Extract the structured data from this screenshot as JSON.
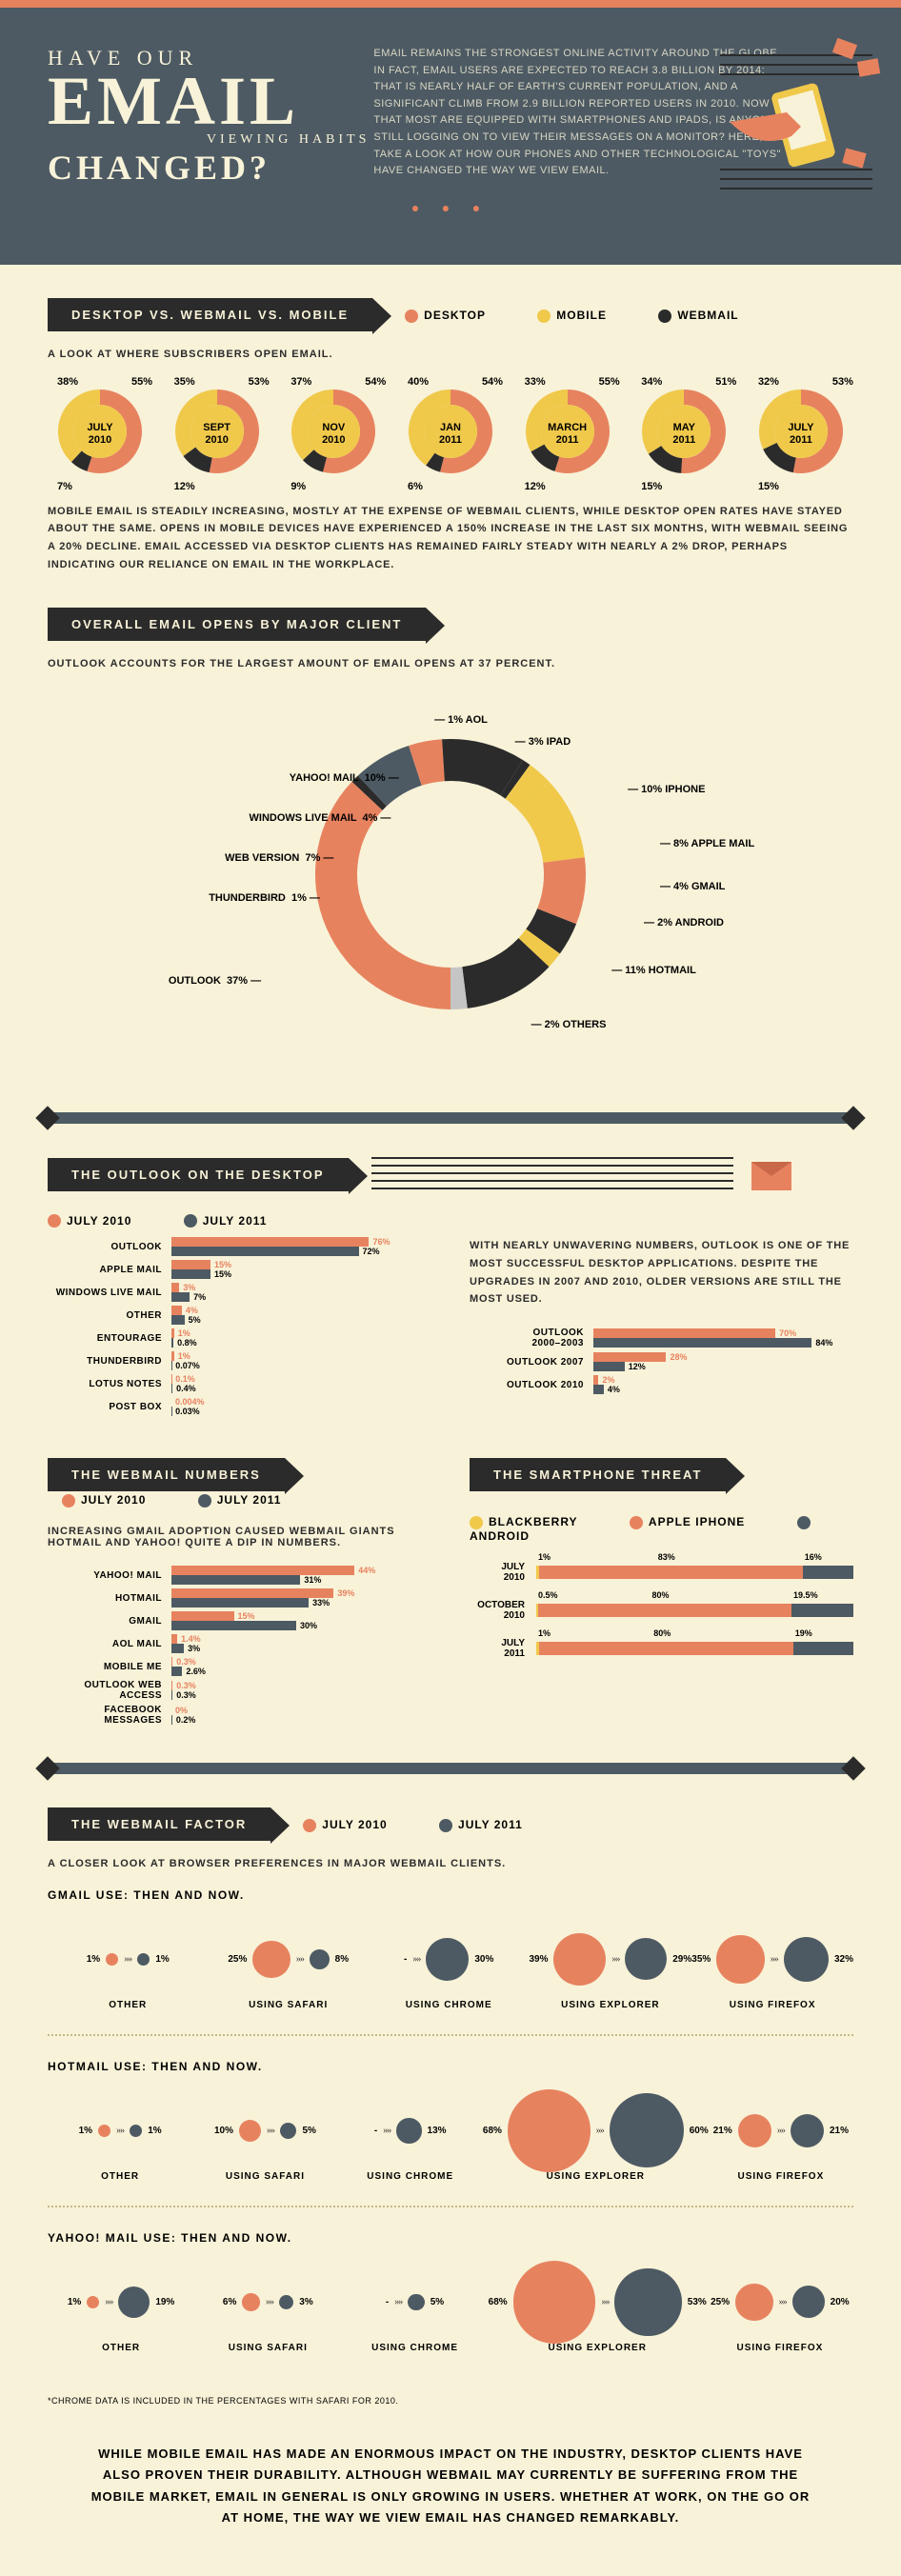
{
  "colors": {
    "desktop": "#e7825f",
    "mobile": "#f0c94b",
    "webmail": "#2b2b2b",
    "android": "#4d5a63",
    "bg": "#f8f2d8",
    "header_bg": "#4d5a63"
  },
  "header": {
    "l1": "HAVE OUR",
    "l2": "EMAIL",
    "l3": "VIEWING HABITS",
    "l4": "CHANGED?",
    "intro": "EMAIL REMAINS THE STRONGEST ONLINE ACTIVITY AROUND THE GLOBE. IN FACT, EMAIL USERS ARE EXPECTED TO REACH 3.8 BILLION BY 2014; THAT IS NEARLY HALF OF EARTH'S CURRENT POPULATION, AND A SIGNIFICANT CLIMB FROM 2.9 BILLION REPORTED USERS IN 2010. NOW THAT MOST ARE EQUIPPED WITH SMARTPHONES AND IPADS, IS ANYONE STILL LOGGING ON TO VIEW THEIR MESSAGES ON A MONITOR? HERE, WE TAKE A LOOK AT HOW OUR PHONES AND OTHER TECHNOLOGICAL \"TOYS\" HAVE CHANGED THE WAY WE VIEW EMAIL."
  },
  "s1": {
    "ribbon": "DESKTOP VS. WEBMAIL VS. MOBILE",
    "legend": {
      "desktop": "DESKTOP",
      "mobile": "MOBILE",
      "webmail": "WEBMAIL"
    },
    "subtext": "A LOOK AT WHERE SUBSCRIBERS OPEN EMAIL.",
    "body": "MOBILE EMAIL IS STEADILY INCREASING, MOSTLY AT THE EXPENSE OF WEBMAIL CLIENTS, WHILE DESKTOP OPEN RATES HAVE STAYED ABOUT THE SAME. OPENS IN MOBILE DEVICES HAVE EXPERIENCED A 150% INCREASE IN THE LAST SIX MONTHS, WITH WEBMAIL SEEING A 20% DECLINE. EMAIL ACCESSED VIA DESKTOP CLIENTS HAS REMAINED FAIRLY STEADY WITH NEARLY A 2% DROP, PERHAPS INDICATING OUR RELIANCE ON EMAIL IN THE WORKPLACE.",
    "donuts": [
      {
        "m1": "JULY",
        "m2": "2010",
        "desktop": 55,
        "mobile": 38,
        "webmail": 7
      },
      {
        "m1": "SEPT",
        "m2": "2010",
        "desktop": 53,
        "mobile": 35,
        "webmail": 12
      },
      {
        "m1": "NOV",
        "m2": "2010",
        "desktop": 54,
        "mobile": 37,
        "webmail": 9
      },
      {
        "m1": "JAN",
        "m2": "2011",
        "desktop": 54,
        "mobile": 40,
        "webmail": 6
      },
      {
        "m1": "MARCH",
        "m2": "2011",
        "desktop": 55,
        "mobile": 33,
        "webmail": 12
      },
      {
        "m1": "MAY",
        "m2": "2011",
        "desktop": 51,
        "mobile": 34,
        "webmail": 15
      },
      {
        "m1": "JULY",
        "m2": "2011",
        "desktop": 53,
        "mobile": 32,
        "webmail": 15
      }
    ]
  },
  "s2": {
    "ribbon": "OVERALL EMAIL OPENS BY MAJOR CLIENT",
    "subtext": "OUTLOOK ACCOUNTS FOR THE LARGEST AMOUNT OF EMAIL OPENS AT 37 PERCENT.",
    "slices": [
      {
        "label": "OUTLOOK",
        "pct": 37,
        "color": "#e7825f"
      },
      {
        "label": "THUNDERBIRD",
        "pct": 1,
        "color": "#2b2b2b"
      },
      {
        "label": "WEB VERSION",
        "pct": 7,
        "color": "#4d5a63"
      },
      {
        "label": "WINDOWS LIVE MAIL",
        "pct": 4,
        "color": "#e7825f"
      },
      {
        "label": "YAHOO! MAIL",
        "pct": 10,
        "color": "#2b2b2b"
      },
      {
        "label": "AOL",
        "pct": 1,
        "color": "#2b2b2b"
      },
      {
        "label": "IPAD",
        "pct": 3,
        "color": "#f0c94b"
      },
      {
        "label": "IPHONE",
        "pct": 10,
        "color": "#f0c94b"
      },
      {
        "label": "APPLE MAIL",
        "pct": 8,
        "color": "#e7825f"
      },
      {
        "label": "GMAIL",
        "pct": 4,
        "color": "#2b2b2b"
      },
      {
        "label": "ANDROID",
        "pct": 2,
        "color": "#f0c94b"
      },
      {
        "label": "HOTMAIL",
        "pct": 11,
        "color": "#2b2b2b"
      },
      {
        "label": "OTHERS",
        "pct": 2,
        "color": "#c5c5c5"
      }
    ]
  },
  "s3": {
    "ribbon": "THE OUTLOOK ON THE DESKTOP",
    "legend": {
      "a": "JULY 2010",
      "b": "JULY 2011"
    },
    "body": "WITH NEARLY UNWAVERING NUMBERS, OUTLOOK IS ONE OF THE MOST SUCCESSFUL DESKTOP APPLICATIONS. DESPITE THE UPGRADES IN 2007 AND 2010, OLDER VERSIONS ARE STILL THE MOST USED.",
    "clients": [
      {
        "label": "OUTLOOK",
        "a": 76,
        "b": 72
      },
      {
        "label": "APPLE MAIL",
        "a": 15,
        "b": 15
      },
      {
        "label": "WINDOWS LIVE MAIL",
        "a": 3,
        "b": 7
      },
      {
        "label": "OTHER",
        "a": 4,
        "b": 5
      },
      {
        "label": "ENTOURAGE",
        "a": 1,
        "b": 0.8
      },
      {
        "label": "THUNDERBIRD",
        "a": 1,
        "b": 0.07
      },
      {
        "label": "LOTUS NOTES",
        "a": 0.1,
        "b": 0.4
      },
      {
        "label": "POST BOX",
        "a": 0.004,
        "b": 0.03
      }
    ],
    "versions": [
      {
        "label": "OUTLOOK 2000–2003",
        "a": 70,
        "b": 84
      },
      {
        "label": "OUTLOOK 2007",
        "a": 28,
        "b": 12
      },
      {
        "label": "OUTLOOK 2010",
        "a": 2,
        "b": 4
      }
    ]
  },
  "s4": {
    "ribbon": "THE WEBMAIL NUMBERS",
    "legend": {
      "a": "JULY 2010",
      "b": "JULY 2011"
    },
    "subtext": "INCREASING GMAIL ADOPTION CAUSED WEBMAIL GIANTS HOTMAIL AND YAHOO! QUITE A DIP IN NUMBERS.",
    "clients": [
      {
        "label": "YAHOO! MAIL",
        "a": 44,
        "b": 31
      },
      {
        "label": "HOTMAIL",
        "a": 39,
        "b": 33
      },
      {
        "label": "GMAIL",
        "a": 15,
        "b": 30
      },
      {
        "label": "AOL MAIL",
        "a": 1.4,
        "b": 3
      },
      {
        "label": "MOBILE ME",
        "a": 0.3,
        "b": 2.6
      },
      {
        "label": "OUTLOOK WEB ACCESS",
        "a": 0.3,
        "b": 0.3
      },
      {
        "label": "FACEBOOK MESSAGES",
        "a": 0,
        "b": 0.2
      }
    ]
  },
  "s5": {
    "ribbon": "THE SMARTPHONE THREAT",
    "legend": {
      "bb": "BLACKBERRY",
      "ip": "APPLE IPHONE",
      "an": "ANDROID"
    },
    "rows": [
      {
        "label": "JULY 2010",
        "bb": 1,
        "ip": 83,
        "an": 16
      },
      {
        "label": "OCTOBER 2010",
        "bb": 0.5,
        "ip": 80,
        "an": 19.5
      },
      {
        "label": "JULY 2011",
        "bb": 1,
        "ip": 80,
        "an": 19
      }
    ]
  },
  "s6": {
    "ribbon": "THE WEBMAIL FACTOR",
    "legend": {
      "a": "JULY 2010",
      "b": "JULY 2011"
    },
    "subtext": "A CLOSER LOOK AT BROWSER PREFERENCES IN MAJOR WEBMAIL CLIENTS.",
    "groups": [
      {
        "head": "GMAIL USE: THEN AND NOW.",
        "pairs": [
          {
            "cat": "OTHER",
            "a": 1,
            "b": 1
          },
          {
            "cat": "USING SAFARI",
            "a": 25,
            "b": 8
          },
          {
            "cat": "USING CHROME",
            "a": null,
            "b": 30
          },
          {
            "cat": "USING EXPLORER",
            "a": 39,
            "b": 29
          },
          {
            "cat": "USING FIREFOX",
            "a": 35,
            "b": 32
          }
        ]
      },
      {
        "head": "HOTMAIL USE: THEN AND NOW.",
        "pairs": [
          {
            "cat": "OTHER",
            "a": 1,
            "b": 1
          },
          {
            "cat": "USING SAFARI",
            "a": 10,
            "b": 5
          },
          {
            "cat": "USING CHROME",
            "a": null,
            "b": 13
          },
          {
            "cat": "USING EXPLORER",
            "a": 68,
            "b": 60
          },
          {
            "cat": "USING FIREFOX",
            "a": 21,
            "b": 21
          }
        ]
      },
      {
        "head": "YAHOO! MAIL USE: THEN AND NOW.",
        "pairs": [
          {
            "cat": "OTHER",
            "a": 1,
            "b": 19
          },
          {
            "cat": "USING SAFARI",
            "a": 6,
            "b": 3
          },
          {
            "cat": "USING CHROME",
            "a": null,
            "b": 5
          },
          {
            "cat": "USING EXPLORER",
            "a": 68,
            "b": 53
          },
          {
            "cat": "USING FIREFOX",
            "a": 25,
            "b": 20
          }
        ]
      }
    ]
  },
  "footer_note": "*CHROME DATA IS INCLUDED IN THE PERCENTAGES WITH SAFARI FOR 2010.",
  "footer_text": "WHILE MOBILE EMAIL HAS MADE AN ENORMOUS IMPACT ON THE INDUSTRY, DESKTOP CLIENTS HAVE ALSO PROVEN THEIR DURABILITY. ALTHOUGH WEBMAIL MAY CURRENTLY BE SUFFERING FROM THE MOBILE MARKET, EMAIL IN GENERAL IS ONLY GROWING IN USERS. WHETHER AT WORK, ON THE GO OR AT HOME, THE WAY WE VIEW EMAIL HAS CHANGED REMARKABLY."
}
